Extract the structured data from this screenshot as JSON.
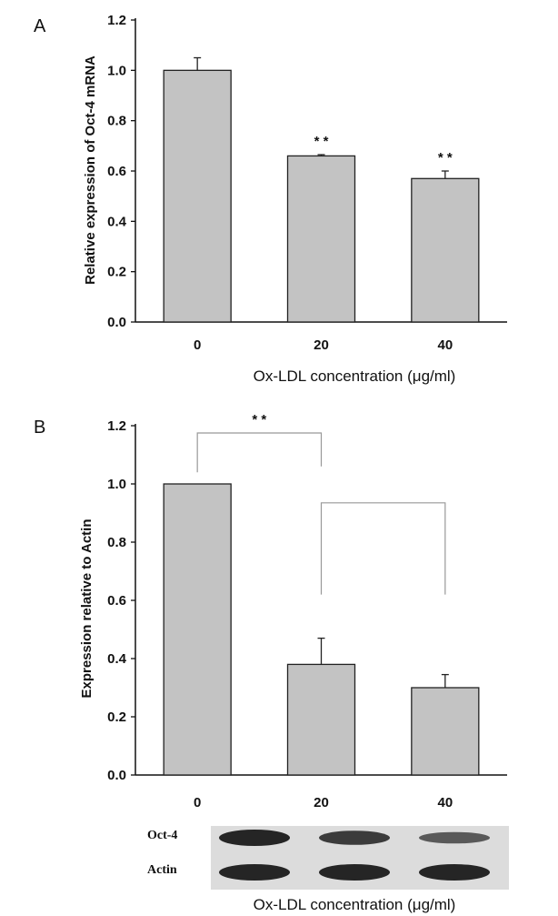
{
  "colors": {
    "bar_fill": "#c3c3c3",
    "bar_stroke": "#222222",
    "axis": "#111111",
    "bracket": "#999999",
    "background": "#ffffff",
    "blot_band": "#1a1a1a"
  },
  "chart_data": [
    {
      "panel_label": "A",
      "type": "bar",
      "categories": [
        "0",
        "20",
        "40"
      ],
      "series": [
        {
          "values": [
            1.0,
            0.66,
            0.57
          ],
          "error": [
            0.05,
            0.005,
            0.03
          ]
        }
      ],
      "significance": [
        "",
        "* *",
        "* *"
      ],
      "ylabel": "Relative expression of Oct-4 mRNA",
      "xlabel": "Ox-LDL concentration (μg/ml)",
      "ylim": [
        0,
        1.2
      ],
      "yticks": [
        "0.0",
        "0.2",
        "0.4",
        "0.6",
        "0.8",
        "1.0",
        "1.2"
      ],
      "grid": false
    },
    {
      "panel_label": "B",
      "type": "bar",
      "categories": [
        "0",
        "20",
        "40"
      ],
      "series": [
        {
          "values": [
            1.0,
            0.38,
            0.3
          ],
          "error": [
            0,
            0.09,
            0.045
          ]
        }
      ],
      "comparisons": [
        {
          "from": "0",
          "to": "20",
          "label": "* *"
        },
        {
          "from": "20",
          "to": "40",
          "label": ""
        }
      ],
      "ylabel": "Expression relative to Actin",
      "xlabel": "Ox-LDL concentration (μg/ml)",
      "ylim": [
        0,
        1.2
      ],
      "yticks": [
        "0.0",
        "0.2",
        "0.4",
        "0.6",
        "0.8",
        "1.0",
        "1.2"
      ],
      "grid": false
    }
  ],
  "blot": {
    "rows": [
      {
        "label": "Oct-4",
        "intensity": [
          1.0,
          0.8,
          0.55
        ]
      },
      {
        "label": "Actin",
        "intensity": [
          1.0,
          1.0,
          1.0
        ]
      }
    ]
  }
}
